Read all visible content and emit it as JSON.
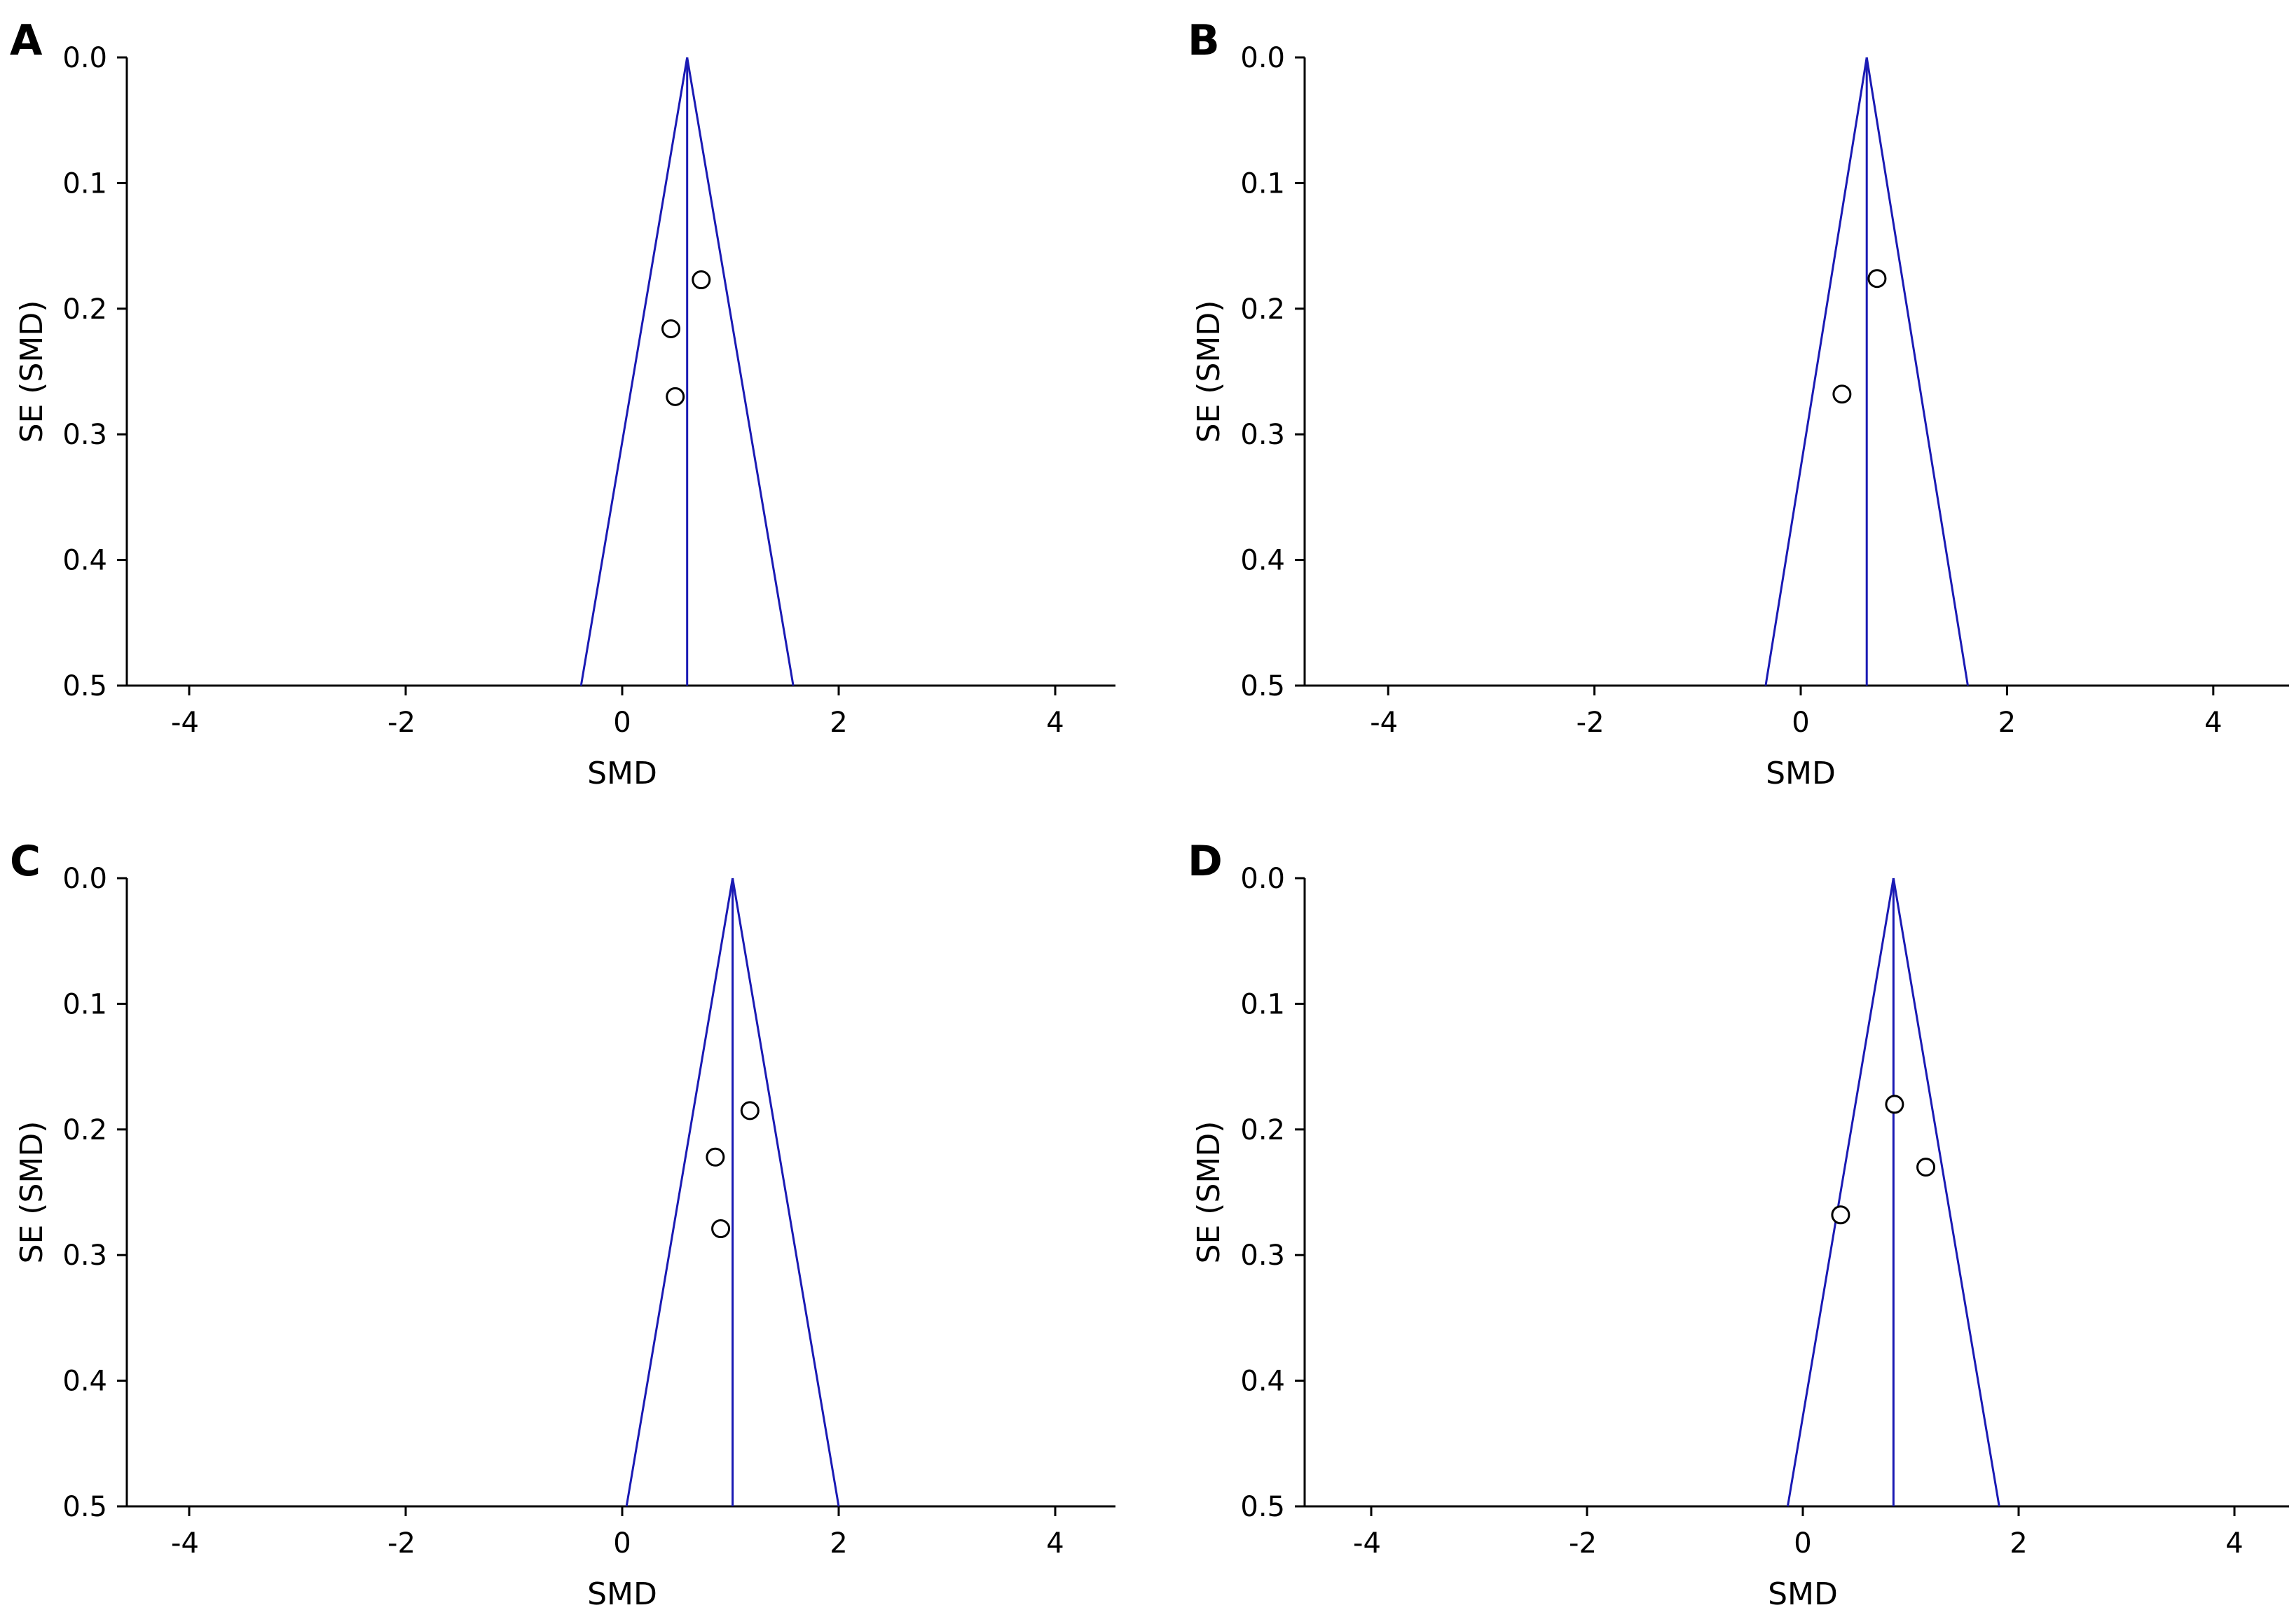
{
  "chart_data": [
    {
      "panel": "A",
      "type": "scatter",
      "xlabel": "SMD",
      "ylabel": "SE (SMD)",
      "xlim": [
        -4.5,
        4.5
      ],
      "ylim": [
        0.0,
        0.5
      ],
      "y_reversed": true,
      "xticks": [
        "-4",
        "-2",
        "0",
        "2",
        "4"
      ],
      "yticks": [
        "0.0",
        "0.1",
        "0.2",
        "0.3",
        "0.4",
        "0.5"
      ],
      "pooled_smd": 0.6,
      "funnel_base": [
        -0.38,
        1.58
      ],
      "points": [
        {
          "x": 0.73,
          "y": 0.177
        },
        {
          "x": 0.45,
          "y": 0.216
        },
        {
          "x": 0.49,
          "y": 0.27
        }
      ]
    },
    {
      "panel": "B",
      "type": "scatter",
      "xlabel": "SMD",
      "ylabel": "SE (SMD)",
      "xlim": [
        -4.5,
        4.5
      ],
      "ylim": [
        0.0,
        0.5
      ],
      "y_reversed": true,
      "xticks": [
        "-4",
        "-2",
        "0",
        "2",
        "4"
      ],
      "yticks": [
        "0.0",
        "0.1",
        "0.2",
        "0.3",
        "0.4",
        "0.5"
      ],
      "pooled_smd": 0.64,
      "funnel_base": [
        -0.34,
        1.62
      ],
      "points": [
        {
          "x": 0.74,
          "y": 0.176
        },
        {
          "x": 0.4,
          "y": 0.268
        }
      ]
    },
    {
      "panel": "C",
      "type": "scatter",
      "xlabel": "SMD",
      "ylabel": "SE (SMD)",
      "xlim": [
        -4.5,
        4.5
      ],
      "ylim": [
        0.0,
        0.5
      ],
      "y_reversed": true,
      "xticks": [
        "-4",
        "-2",
        "0",
        "2",
        "4"
      ],
      "yticks": [
        "0.0",
        "0.1",
        "0.2",
        "0.3",
        "0.4",
        "0.5"
      ],
      "pooled_smd": 1.02,
      "funnel_base": [
        0.04,
        2.0
      ],
      "points": [
        {
          "x": 1.18,
          "y": 0.185
        },
        {
          "x": 0.86,
          "y": 0.222
        },
        {
          "x": 0.91,
          "y": 0.279
        }
      ]
    },
    {
      "panel": "D",
      "type": "scatter",
      "xlabel": "SMD",
      "ylabel": "SE (SMD)",
      "xlim": [
        -4.5,
        4.5
      ],
      "ylim": [
        0.0,
        0.5
      ],
      "y_reversed": true,
      "xticks": [
        "-4",
        "-2",
        "0",
        "2",
        "4"
      ],
      "yticks": [
        "0.0",
        "0.1",
        "0.2",
        "0.3",
        "0.4",
        "0.5"
      ],
      "pooled_smd": 0.84,
      "funnel_base": [
        -0.14,
        1.82
      ],
      "points": [
        {
          "x": 0.85,
          "y": 0.18
        },
        {
          "x": 1.14,
          "y": 0.23
        },
        {
          "x": 0.35,
          "y": 0.268
        }
      ]
    }
  ],
  "colors": {
    "funnel": "#1a1ab4",
    "axis": "#000000",
    "point_fill": "#ffffff"
  }
}
